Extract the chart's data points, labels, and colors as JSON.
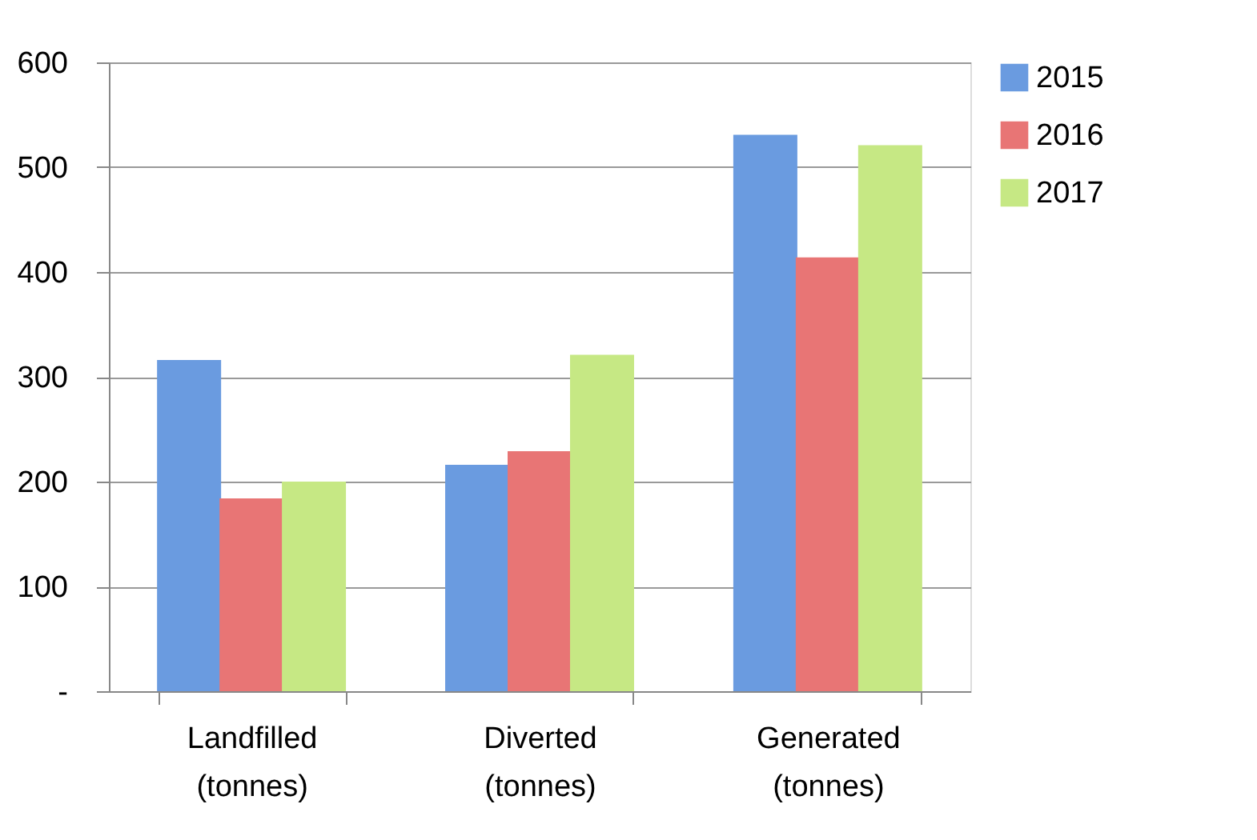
{
  "chart_data": {
    "type": "bar",
    "categories": [
      "Landfilled\n(tonnes)",
      "Diverted\n(tonnes)",
      "Generated\n(tonnes)"
    ],
    "series": [
      {
        "name": "2015",
        "color": "#6a9be0",
        "values": [
          316,
          216,
          531
        ]
      },
      {
        "name": "2016",
        "color": "#e87575",
        "values": [
          184,
          229,
          414
        ]
      },
      {
        "name": "2017",
        "color": "#c6e884",
        "values": [
          200,
          321,
          521
        ]
      }
    ],
    "ylim": [
      0,
      600
    ],
    "yticks": [
      {
        "value": 0,
        "label": "-"
      },
      100,
      200,
      300,
      400,
      500,
      600
    ],
    "grid": "y",
    "legend": "right"
  }
}
